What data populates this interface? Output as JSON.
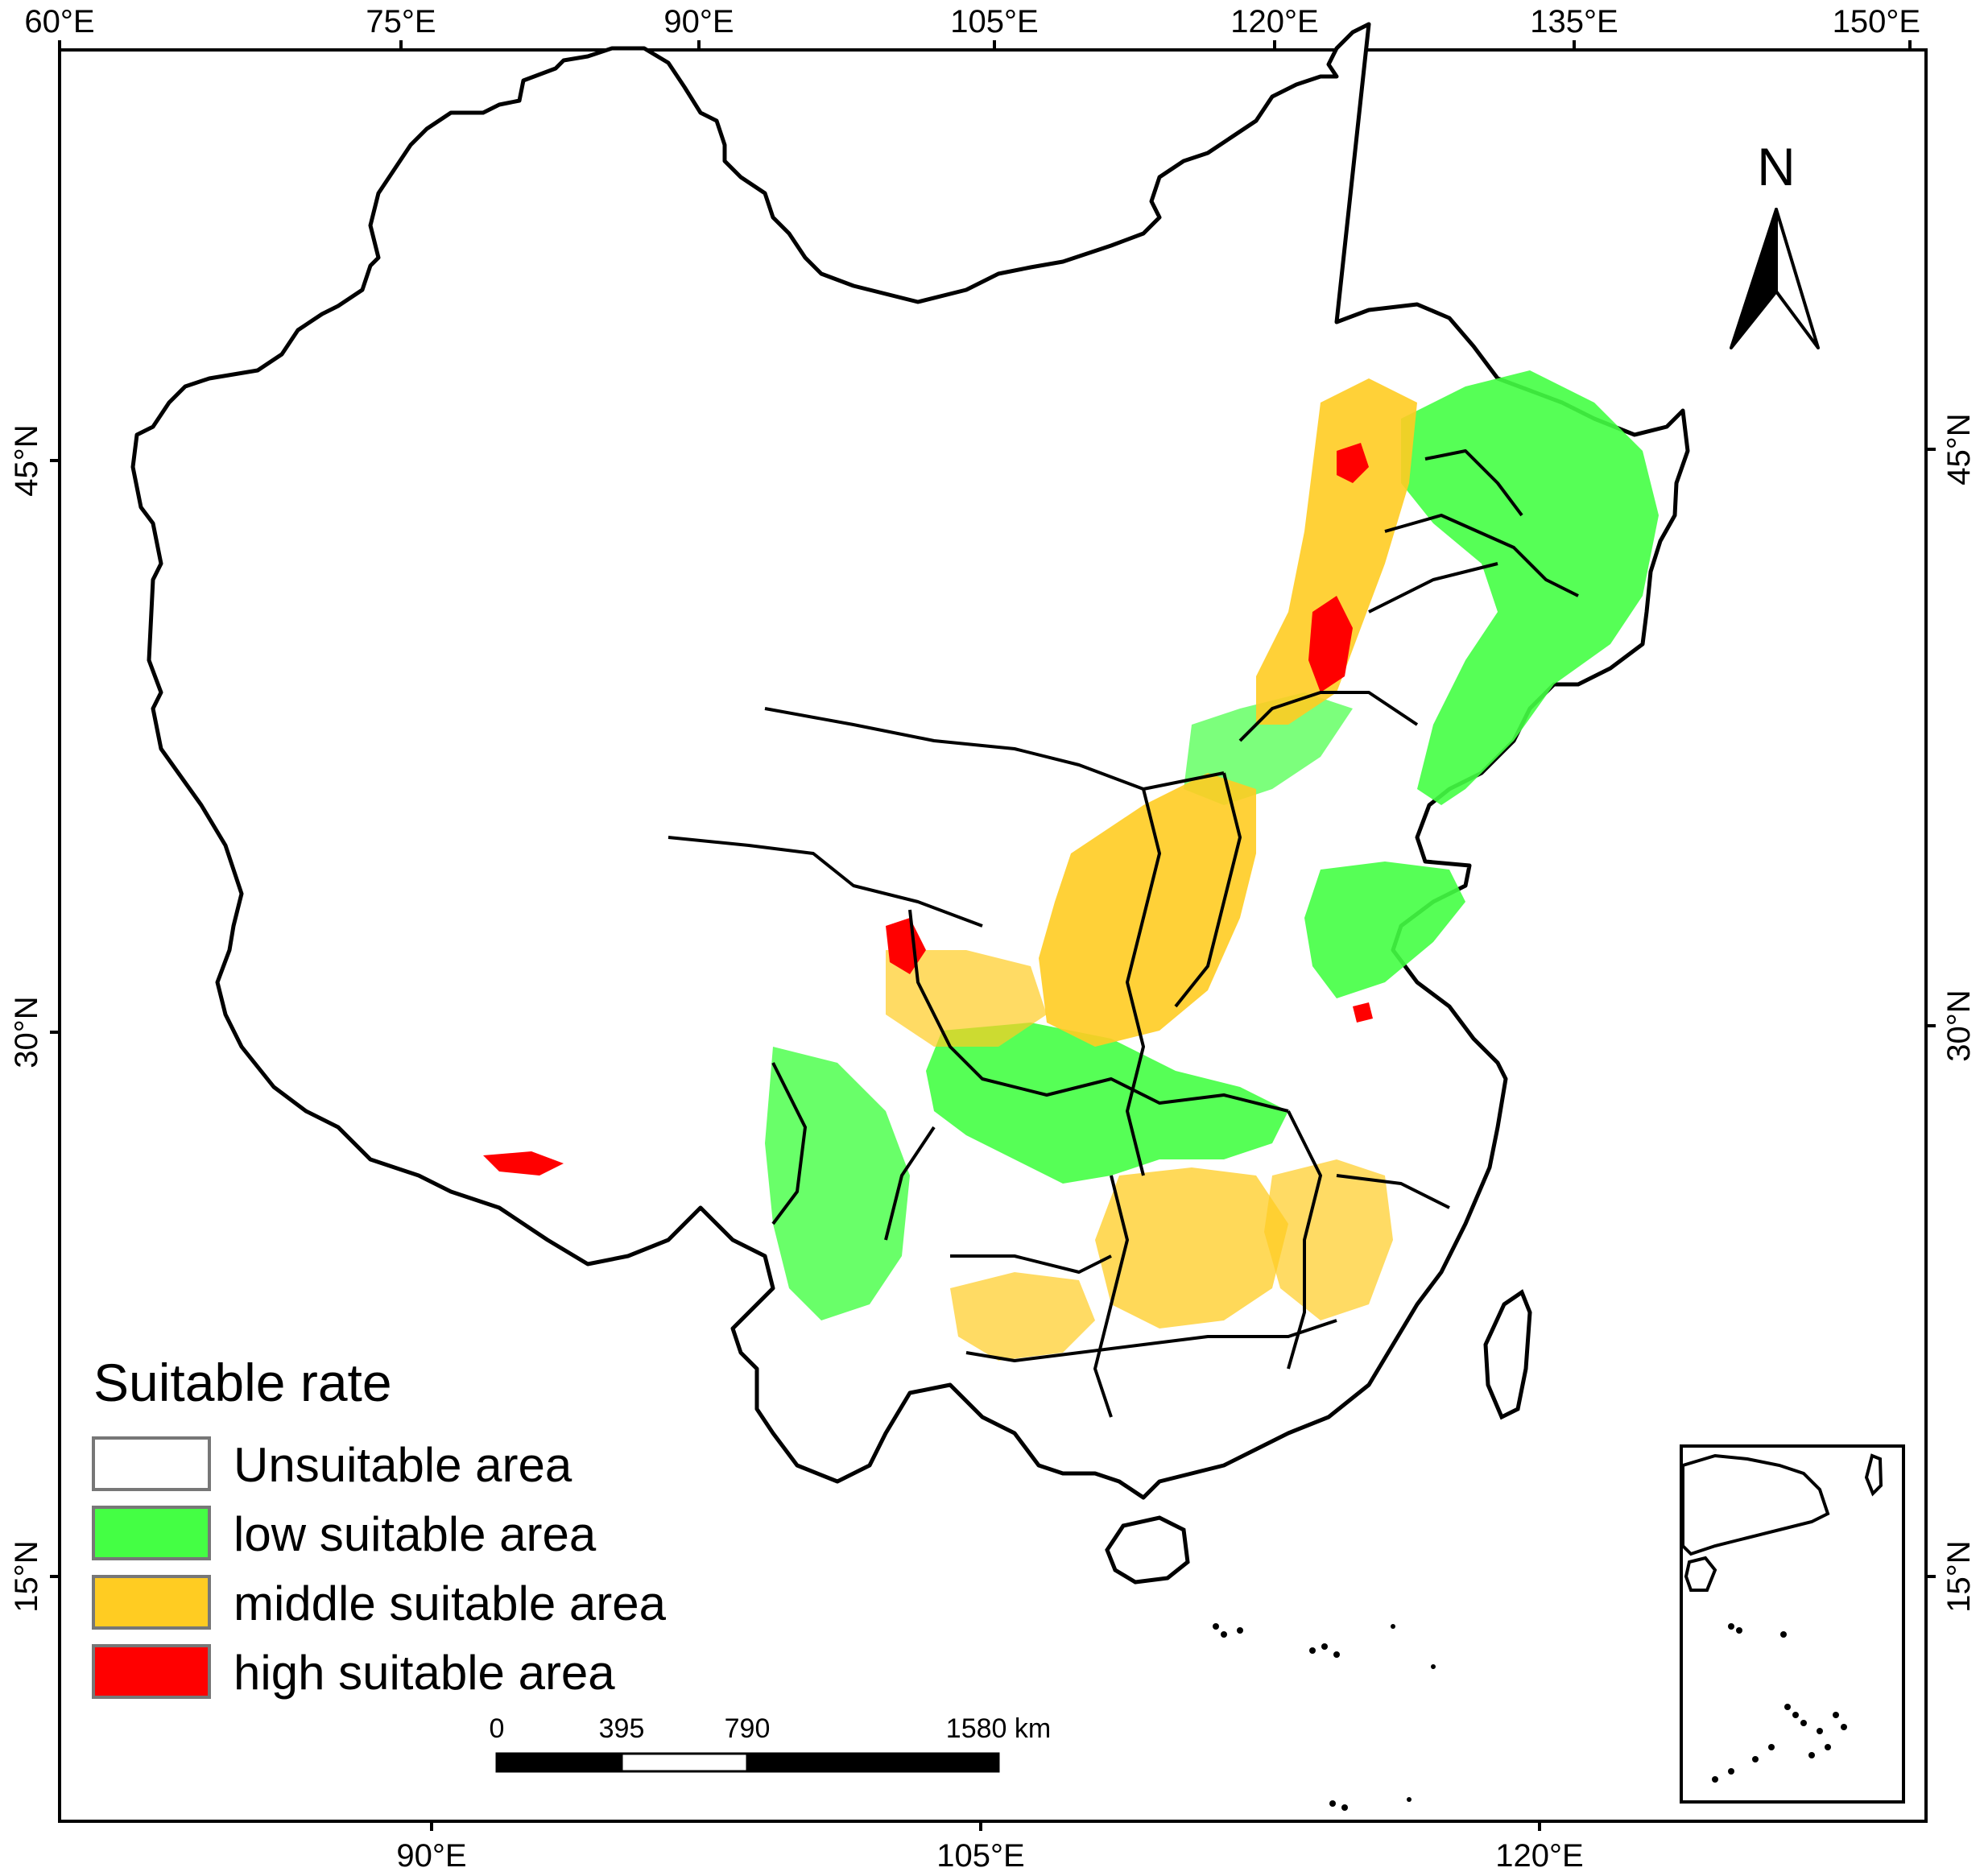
{
  "map": {
    "top_ticks": [
      "60°E",
      "75°E",
      "90°E",
      "105°E",
      "120°E",
      "135°E",
      "150°E"
    ],
    "bottom_ticks": [
      "90°E",
      "105°E",
      "120°E"
    ],
    "left_ticks": [
      "45°N",
      "30°N",
      "15°N"
    ],
    "right_ticks": [
      "45°N",
      "30°N",
      "15°N"
    ],
    "north_arrow": "N",
    "legend": {
      "title": "Suitable rate",
      "items": [
        {
          "label": "Unsuitable area",
          "color": "#ffffff"
        },
        {
          "label": "low suitable area",
          "color": "#44ff44"
        },
        {
          "label": "middle suitable area",
          "color": "#ffcc22"
        },
        {
          "label": "high suitable area",
          "color": "#ff0000"
        }
      ]
    },
    "scale_bar": {
      "labels": [
        "0",
        "395",
        "790",
        "1580 km"
      ]
    },
    "colors": {
      "border": "#000000",
      "low": "#44ff44",
      "middle": "#ffcc22",
      "high": "#ff0000"
    }
  }
}
